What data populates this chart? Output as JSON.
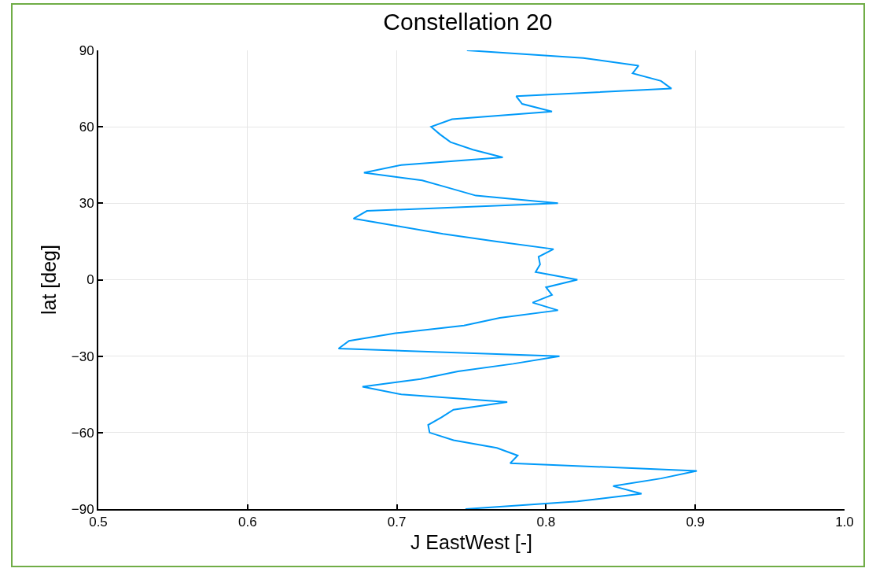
{
  "chart_data": {
    "type": "line",
    "title": "Constellation 20",
    "xlabel": "J EastWest [-]",
    "ylabel": "lat [deg]",
    "xlim": [
      0.5,
      1.0
    ],
    "xticks": [
      0.5,
      0.6,
      0.7,
      0.8,
      0.9,
      {
        "value": 1,
        "label": "1.0"
      }
    ],
    "ylim": [
      -90,
      90
    ],
    "yticks": [
      -90,
      -60,
      -30,
      0,
      30,
      60,
      90
    ],
    "grid": true,
    "marker": "none",
    "line_style": "solid",
    "series": [
      {
        "color": "#009af9",
        "x": [
          0.747,
          0.825,
          0.862,
          0.858,
          0.877,
          0.884,
          0.78,
          0.784,
          0.804,
          0.737,
          0.723,
          0.729,
          0.736,
          0.751,
          0.771,
          0.703,
          0.678,
          0.717,
          0.735,
          0.753,
          0.808,
          0.68,
          0.671,
          0.701,
          0.731,
          0.767,
          0.805,
          0.795,
          0.796,
          0.793,
          0.821,
          0.8,
          0.804,
          0.791,
          0.808,
          0.769,
          0.745,
          0.699,
          0.668,
          0.661,
          0.809,
          0.778,
          0.741,
          0.716,
          0.677,
          0.703,
          0.774,
          0.738,
          0.73,
          0.721,
          0.722,
          0.738,
          0.767,
          0.781,
          0.776,
          0.901,
          0.877,
          0.845,
          0.864,
          0.821,
          0.746
        ],
        "values": [
          90,
          87,
          84,
          81,
          78,
          75,
          72,
          69,
          66,
          63,
          60,
          57,
          54,
          51,
          48,
          45,
          42,
          39,
          36,
          33,
          30,
          27,
          24,
          21,
          18,
          15,
          12,
          9,
          6,
          3,
          0,
          -3,
          -6,
          -9,
          -12,
          -15,
          -18,
          -21,
          -24,
          -27,
          -30,
          -33,
          -36,
          -39,
          -42,
          -45,
          -48,
          -51,
          -54,
          -57,
          -60,
          -63,
          -66,
          -69,
          -72,
          -75,
          -78,
          -81,
          -84,
          -87,
          -90
        ]
      }
    ]
  }
}
